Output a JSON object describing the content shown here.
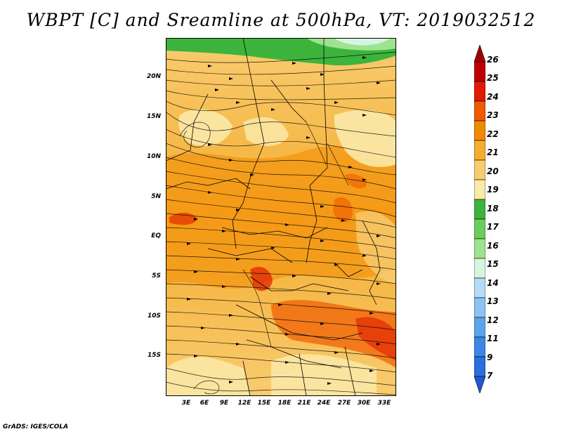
{
  "title": "WBPT [C] and Sreamline at 500hPa, VT: 2019032512",
  "credit": "GrADS: IGES/COLA",
  "map": {
    "lat_labels": [
      "20N",
      "15N",
      "10N",
      "5N",
      "EQ",
      "5S",
      "10S",
      "15S"
    ],
    "lon_labels": [
      "3E",
      "6E",
      "9E",
      "12E",
      "15E",
      "18E",
      "21E",
      "24E",
      "27E",
      "30E",
      "33E"
    ]
  },
  "colorbar": {
    "labels": [
      "26",
      "25",
      "24",
      "23",
      "22",
      "21",
      "20",
      "19",
      "18",
      "17",
      "16",
      "15",
      "14",
      "13",
      "12",
      "11",
      "9",
      "7"
    ],
    "colors": [
      "#a00000",
      "#c00000",
      "#e01b00",
      "#f05a00",
      "#f28a00",
      "#f5ad30",
      "#f8cc70",
      "#fbe9a8",
      "#3cb43c",
      "#6acd5e",
      "#9ee390",
      "#d6f5e0",
      "#b5dcf5",
      "#8cc3f0",
      "#5aa5ea",
      "#3a87e6",
      "#2a6fdc",
      "#1e58d0"
    ]
  },
  "colors": {
    "ocean_border": "#000000",
    "streamline": "#000000"
  }
}
